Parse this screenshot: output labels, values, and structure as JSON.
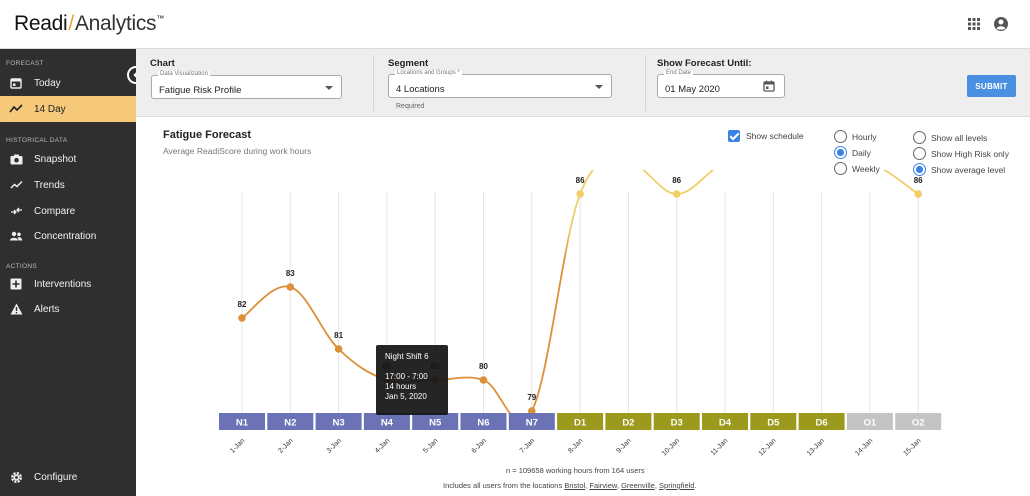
{
  "app": {
    "logo_part1": "Readi",
    "logo_part2": "Analytics",
    "logo_tm": "™"
  },
  "header": {
    "icons": [
      "apps-grid-icon",
      "account-icon"
    ]
  },
  "sidebar": {
    "sections": [
      {
        "label": "FORECAST",
        "items": [
          {
            "label": "Today",
            "icon": "calendar-icon",
            "active": false
          },
          {
            "label": "14 Day",
            "icon": "trend-icon",
            "active": true
          }
        ]
      },
      {
        "label": "HISTORICAL DATA",
        "items": [
          {
            "label": "Snapshot",
            "icon": "camera-icon",
            "active": false
          },
          {
            "label": "Trends",
            "icon": "trends-icon",
            "active": false
          },
          {
            "label": "Compare",
            "icon": "compare-icon",
            "active": false
          },
          {
            "label": "Concentration",
            "icon": "people-icon",
            "active": false
          }
        ]
      },
      {
        "label": "ACTIONS",
        "items": [
          {
            "label": "Interventions",
            "icon": "plus-box-icon",
            "active": false
          },
          {
            "label": "Alerts",
            "icon": "warning-icon",
            "active": false
          }
        ]
      }
    ],
    "configure_label": "Configure"
  },
  "filters": {
    "chart": {
      "title": "Chart",
      "float_label": "Data Visualization",
      "value": "Fatigue Risk Profile"
    },
    "segment": {
      "title": "Segment",
      "float_label": "Locations and Groups *",
      "value": "4 Locations",
      "helper": "Required"
    },
    "forecast_until": {
      "title": "Show Forecast Until:",
      "float_label": "End Date",
      "value": "01 May 2020"
    },
    "submit_label": "SUBMIT"
  },
  "chart_panel": {
    "title": "Fatigue Forecast",
    "subtitle": "Average ReadiScore during work hours",
    "show_schedule": {
      "label": "Show schedule",
      "checked": true
    },
    "granularity": [
      {
        "label": "Hourly",
        "selected": false
      },
      {
        "label": "Daily",
        "selected": true
      },
      {
        "label": "Weekly",
        "selected": false
      }
    ],
    "levels": [
      {
        "label": "Show all levels",
        "selected": false
      },
      {
        "label": "Show High Risk only",
        "selected": false
      },
      {
        "label": "Show average level",
        "selected": true
      }
    ]
  },
  "tooltip": {
    "line1": "Night Shift 6",
    "line2": "17:00 - 7:00",
    "line3": "14 hours",
    "line4": "Jan 5, 2020"
  },
  "chart_data": {
    "type": "line",
    "x": [
      "1-Jan",
      "2-Jan",
      "3-Jan",
      "4-Jan",
      "5-Jan",
      "6-Jan",
      "7-Jan",
      "8-Jan",
      "9-Jan",
      "10-Jan",
      "11-Jan",
      "12-Jan",
      "13-Jan",
      "14-Jan",
      "15-Jan"
    ],
    "values": [
      82,
      83,
      81,
      80,
      80,
      80,
      79,
      86,
      87,
      86,
      87,
      87,
      87,
      87,
      86
    ],
    "shifts": [
      "N1",
      "N2",
      "N3",
      "N4",
      "N5",
      "N6",
      "N7",
      "D1",
      "D2",
      "D3",
      "D4",
      "D5",
      "D6",
      "O1",
      "O2"
    ],
    "shift_colors": {
      "N": "#6b73b6",
      "D": "#9c9a1c",
      "O": "#c4c4c4"
    },
    "line_colors": {
      "low": "#dd8f3a",
      "high": "#f0cf68"
    },
    "grid": true
  },
  "footer": {
    "line1": "n = 109658 working hours from 164 users",
    "line2_prefix": "Includes all users from the locations",
    "locations": [
      "Bristol",
      "Fairview",
      "Greenville",
      "Springfield"
    ],
    "sep_comma": ",",
    "end_period": "."
  }
}
